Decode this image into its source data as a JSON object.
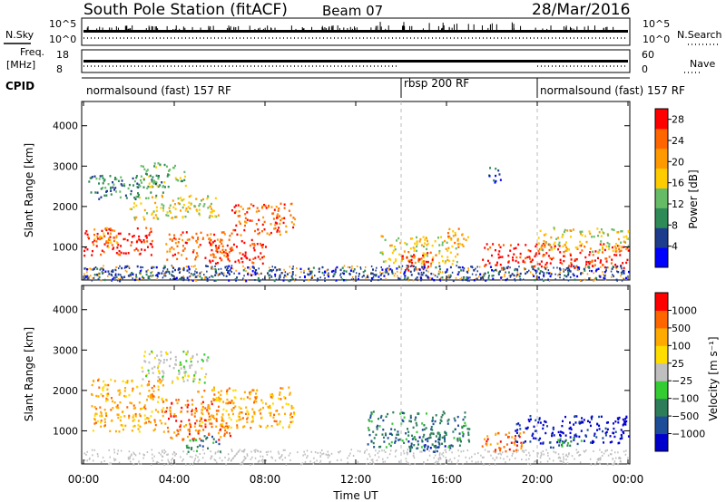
{
  "header": {
    "station_title": "South Pole Station (fitACF)",
    "beam": "Beam 07",
    "date": "28/Mar/2016"
  },
  "strip_labels": {
    "nsky": "N.Sky",
    "nsky_ticks": [
      "10^5",
      "10^0"
    ],
    "nsearch": "N.Search",
    "nsearch_ticks": [
      "10^5",
      "10^0"
    ],
    "freq": "Freq.",
    "freq_unit": "[MHz]",
    "freq_ticks": [
      "18",
      "8"
    ],
    "nave": "Nave",
    "nave_ticks": [
      "60",
      "0"
    ],
    "cpid": "CPID"
  },
  "cpid_segments": [
    {
      "label": "normalsound (fast) 157 RF",
      "start_hour": 0,
      "end_hour": 14
    },
    {
      "label": "rbsp 200 RF",
      "start_hour": 14,
      "end_hour": 20
    },
    {
      "label": "normalsound (fast) 157 RF",
      "start_hour": 20,
      "end_hour": 24
    }
  ],
  "colors": {
    "power_scale": [
      "#0000ff",
      "#1e3c8c",
      "#2e8b57",
      "#66bb66",
      "#ffcc00",
      "#ff9900",
      "#ff6600",
      "#ff0000"
    ],
    "velocity_scale": [
      "#0000cc",
      "#1d4d99",
      "#2e7d5a",
      "#33cc33",
      "#bfbfbf",
      "#ffdd00",
      "#ffaa00",
      "#ff6600",
      "#ff0000"
    ]
  },
  "chart_data": [
    {
      "type": "heatmap",
      "name": "power",
      "ylabel": "Slant Range [km]",
      "xlabel": "Time UT",
      "x_ticks": [
        "00:00",
        "04:00",
        "08:00",
        "12:00",
        "16:00",
        "20:00",
        "00:00"
      ],
      "xlim_hours": [
        0,
        24
      ],
      "y_ticks": [
        1000,
        2000,
        3000,
        4000
      ],
      "ylim": [
        180,
        4600
      ],
      "colorbar": {
        "label": "Power [dB]",
        "ticks": [
          4,
          8,
          12,
          16,
          20,
          24,
          28
        ],
        "range": [
          0,
          30
        ]
      },
      "blobs": [
        {
          "t0": 0.0,
          "t1": 3.0,
          "r0": 800,
          "r1": 1500,
          "level": 7
        },
        {
          "t0": 0.3,
          "t1": 1.5,
          "r0": 1000,
          "r1": 1500,
          "level": 5
        },
        {
          "t0": 2.0,
          "t1": 6.0,
          "r0": 1700,
          "r1": 2300,
          "level": 4
        },
        {
          "t0": 3.5,
          "t1": 6.5,
          "r0": 700,
          "r1": 1400,
          "level": 6
        },
        {
          "t0": 5.5,
          "t1": 8.0,
          "r0": 600,
          "r1": 1200,
          "level": 7
        },
        {
          "t0": 6.5,
          "t1": 9.3,
          "r0": 1300,
          "r1": 2100,
          "level": 6
        },
        {
          "t0": 0.2,
          "t1": 3.5,
          "r0": 2200,
          "r1": 2800,
          "level": 2
        },
        {
          "t0": 2.5,
          "t1": 4.5,
          "r0": 2500,
          "r1": 3100,
          "level": 3
        },
        {
          "t0": 13.0,
          "t1": 16.5,
          "r0": 600,
          "r1": 1300,
          "level": 4
        },
        {
          "t0": 14.0,
          "t1": 15.5,
          "r0": 400,
          "r1": 900,
          "level": 7
        },
        {
          "t0": 16.0,
          "t1": 17.0,
          "r0": 1000,
          "r1": 1500,
          "level": 5
        },
        {
          "t0": 17.5,
          "t1": 24.0,
          "r0": 500,
          "r1": 1100,
          "level": 7
        },
        {
          "t0": 20.0,
          "t1": 24.0,
          "r0": 900,
          "r1": 1500,
          "level": 4
        },
        {
          "t0": 17.8,
          "t1": 18.4,
          "r0": 2600,
          "r1": 3000,
          "level": 1
        },
        {
          "t0": 0.0,
          "t1": 24.0,
          "r0": 180,
          "r1": 550,
          "level": 1
        }
      ]
    },
    {
      "type": "heatmap",
      "name": "velocity",
      "ylabel": "Slant Range [km]",
      "xlabel": "Time UT",
      "x_ticks": [
        "00:00",
        "04:00",
        "08:00",
        "12:00",
        "16:00",
        "20:00",
        "00:00"
      ],
      "xlim_hours": [
        0,
        24
      ],
      "y_ticks": [
        1000,
        2000,
        3000,
        4000
      ],
      "ylim": [
        180,
        4600
      ],
      "colorbar": {
        "label": "Velocity [m s⁻¹]",
        "ticks": [
          "1000",
          "500",
          "100",
          "25",
          "−25",
          "−100",
          "−500",
          "−1000"
        ]
      },
      "blobs": [
        {
          "t0": 0.3,
          "t1": 3.5,
          "r0": 1000,
          "r1": 2300,
          "level": 6
        },
        {
          "t0": 2.5,
          "t1": 5.5,
          "r0": 2200,
          "r1": 3000,
          "level": 4
        },
        {
          "t0": 3.5,
          "t1": 6.5,
          "r0": 800,
          "r1": 1800,
          "level": 7
        },
        {
          "t0": 5.0,
          "t1": 9.3,
          "r0": 1100,
          "r1": 2100,
          "level": 6
        },
        {
          "t0": 4.5,
          "t1": 6.0,
          "r0": 500,
          "r1": 900,
          "level": 2
        },
        {
          "t0": 12.5,
          "t1": 17.0,
          "r0": 600,
          "r1": 1500,
          "level": 2
        },
        {
          "t0": 14.0,
          "t1": 16.0,
          "r0": 500,
          "r1": 1000,
          "level": 1
        },
        {
          "t0": 17.5,
          "t1": 19.5,
          "r0": 500,
          "r1": 1000,
          "level": 7
        },
        {
          "t0": 19.0,
          "t1": 24.0,
          "r0": 700,
          "r1": 1400,
          "level": 0
        },
        {
          "t0": 20.5,
          "t1": 22.0,
          "r0": 600,
          "r1": 900,
          "level": 2
        }
      ]
    }
  ]
}
